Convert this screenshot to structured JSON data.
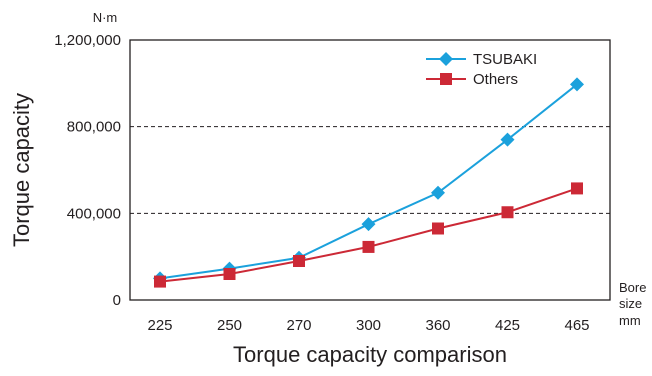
{
  "chart_data": {
    "type": "line",
    "title": "",
    "xlabel": "Torque capacity comparison",
    "ylabel": "Torque capacity",
    "y_unit": "N·m",
    "x_unit_lines": [
      "Bore",
      "size",
      "mm"
    ],
    "categories": [
      "225",
      "250",
      "270",
      "300",
      "360",
      "425",
      "465"
    ],
    "ylim": [
      0,
      1200000
    ],
    "yticks": [
      0,
      400000,
      800000,
      1200000
    ],
    "ytick_labels": [
      "0",
      "400,000",
      "800,000",
      "1,200,000"
    ],
    "grid": "dashed horizontal at 400,000 and 800,000",
    "legend_position": "top-right",
    "series": [
      {
        "name": "TSUBAKI",
        "color": "#1ba1dc",
        "marker": "diamond",
        "values": [
          100000,
          145000,
          195000,
          350000,
          495000,
          740000,
          995000
        ]
      },
      {
        "name": "Others",
        "color": "#cc2936",
        "marker": "square",
        "values": [
          85000,
          120000,
          180000,
          245000,
          330000,
          405000,
          515000
        ]
      }
    ]
  }
}
